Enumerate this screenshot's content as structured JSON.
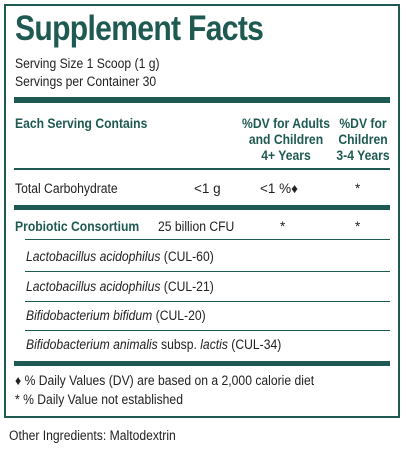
{
  "title": "Supplement Facts",
  "serving_size": "Serving Size 1 Scoop (1 g)",
  "servings_per_container": "Servings per Container 30",
  "columns": {
    "each_serving": "Each Serving Contains",
    "dv_adults": [
      "%DV for Adults",
      "and Children",
      "4+ Years"
    ],
    "dv_children": [
      "%DV for",
      "Children",
      "3-4 Years"
    ]
  },
  "total_carbohydrate": {
    "label": "Total Carbohydrate",
    "amount": "<1 g",
    "dv_adults": "<1 %♦",
    "dv_children": "*"
  },
  "probiotic": {
    "label": "Probiotic Consortium",
    "amount": "25 billion CFU",
    "dv_adults": "*",
    "dv_children": "*"
  },
  "strains": [
    {
      "name": "Lactobacillus acidophilus",
      "suffix": " (CUL-60)"
    },
    {
      "name": "Lactobacillus acidophilus",
      "suffix": " (CUL-21)"
    },
    {
      "name": "Bifidobacterium bifidum",
      "suffix": " (CUL-20)"
    },
    {
      "name": "Bifidobacterium animalis",
      "suffix": " subsp. ",
      "suffix_italic": "lactis",
      "suffix_end": " (CUL-34)"
    }
  ],
  "footnotes": {
    "daily_values": "♦ % Daily Values (DV) are based on a 2,000 calorie diet",
    "not_established": "* % Daily Value not established"
  },
  "other_ingredients": "Other Ingredients: Maltodextrin",
  "colors": {
    "accent": "#1e5a52",
    "text": "#222222"
  }
}
